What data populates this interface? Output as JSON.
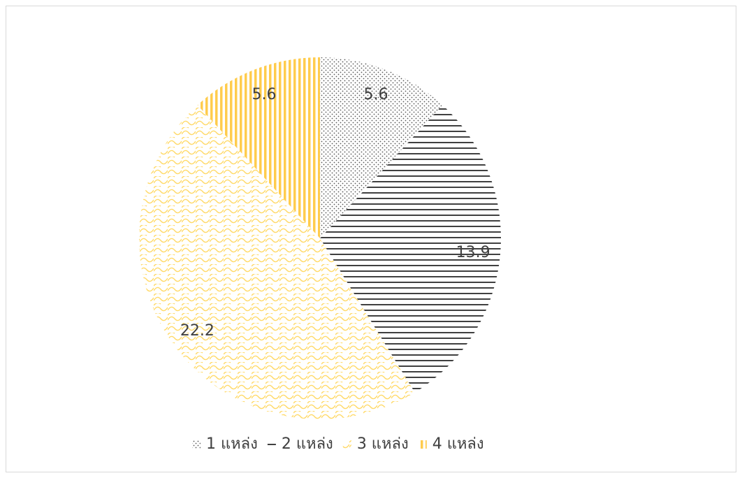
{
  "chart_data": {
    "type": "pie",
    "categories": [
      "1 แหล่ง",
      "2 แหล่ง",
      "3 แหล่ง",
      "4 แหล่ง"
    ],
    "values": [
      5.6,
      13.9,
      22.2,
      5.6
    ],
    "colors": [
      "#595959",
      "#404040",
      "#ffd966",
      "#ffcc4d"
    ],
    "legend": "bottom"
  }
}
